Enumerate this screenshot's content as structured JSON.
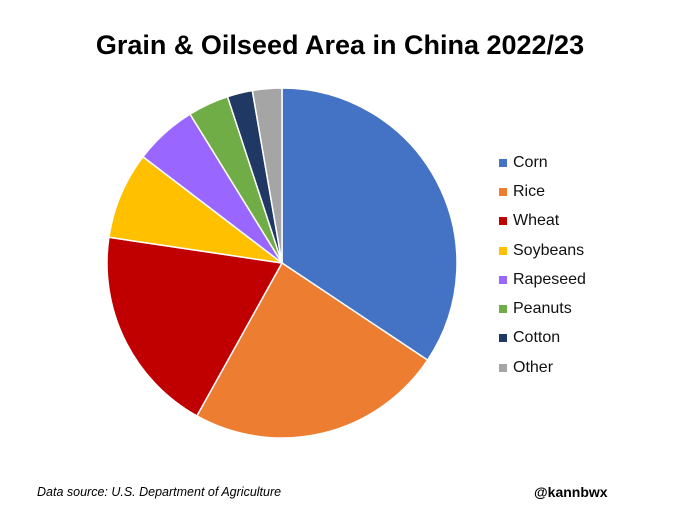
{
  "chart_data": {
    "type": "pie",
    "title": "Grain & Oilseed Area in China 2022/23",
    "slices": [
      {
        "label": "Corn",
        "value": 35.5,
        "color": "#4472C4"
      },
      {
        "label": "Rice",
        "value": 24.5,
        "color": "#ED7D31"
      },
      {
        "label": "Wheat",
        "value": 19.9,
        "color": "#C00000"
      },
      {
        "label": "Soybeans",
        "value": 8.3,
        "color": "#FFC000"
      },
      {
        "label": "Rapeseed",
        "value": 6.0,
        "color": "#9966FF"
      },
      {
        "label": "Peanuts",
        "value": 3.9,
        "color": "#70AD47"
      },
      {
        "label": "Cotton",
        "value": 2.4,
        "color": "#203864"
      },
      {
        "label": "Other",
        "value": 2.8,
        "color": "#A5A5A5"
      }
    ],
    "legend_position": "right"
  },
  "footer": {
    "source": "Data source: U.S. Department of Agriculture",
    "handle": "@kannbwx"
  }
}
